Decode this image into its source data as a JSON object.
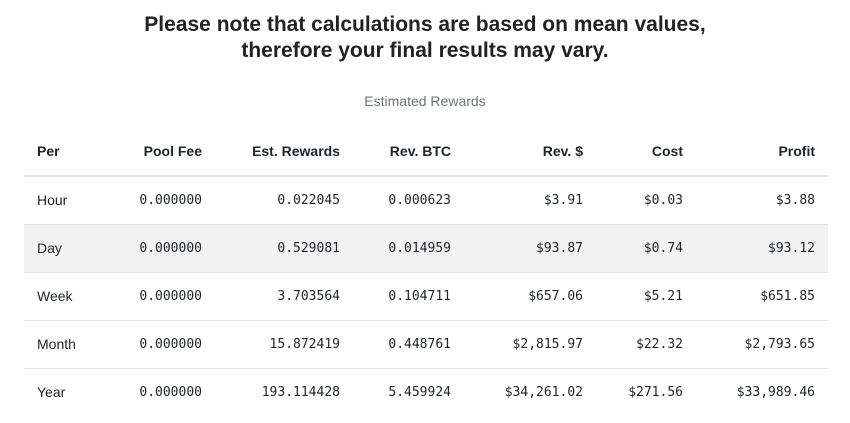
{
  "note": {
    "line1": "Please note that calculations are based on mean values,",
    "line2": "therefore your final results may vary."
  },
  "caption": "Estimated Rewards",
  "table": {
    "headers": [
      "Per",
      "Pool Fee",
      "Est. Rewards",
      "Rev. BTC",
      "Rev. $",
      "Cost",
      "Profit"
    ],
    "rows": [
      [
        "Hour",
        "0.000000",
        "0.022045",
        "0.000623",
        "$3.91",
        "$0.03",
        "$3.88"
      ],
      [
        "Day",
        "0.000000",
        "0.529081",
        "0.014959",
        "$93.87",
        "$0.74",
        "$93.12"
      ],
      [
        "Week",
        "0.000000",
        "3.703564",
        "0.104711",
        "$657.06",
        "$5.21",
        "$651.85"
      ],
      [
        "Month",
        "0.000000",
        "15.872419",
        "0.448761",
        "$2,815.97",
        "$22.32",
        "$2,793.65"
      ],
      [
        "Year",
        "0.000000",
        "193.114428",
        "5.459924",
        "$34,261.02",
        "$271.56",
        "$33,989.46"
      ]
    ]
  }
}
